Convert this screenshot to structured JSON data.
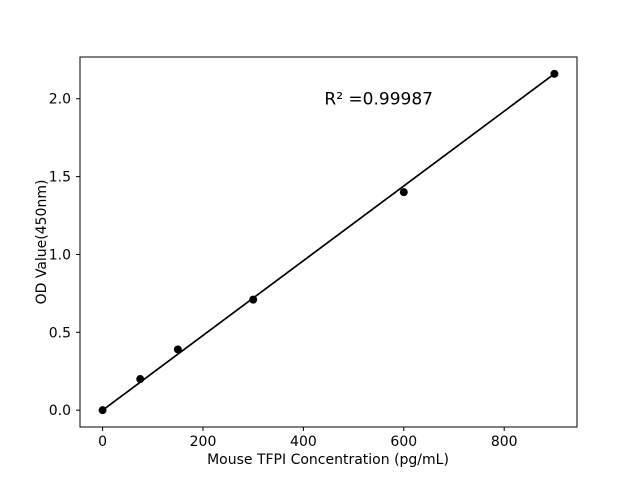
{
  "figure": {
    "background": "#ffffff"
  },
  "chart_data": {
    "type": "scatter",
    "title": "",
    "xlabel": "Mouse TFPI Concentration (pg/mL)",
    "ylabel": "OD Value(450nm)",
    "x": [
      0,
      75,
      150,
      300,
      600,
      900
    ],
    "y": [
      0.0,
      0.2,
      0.39,
      0.71,
      1.4,
      2.16
    ],
    "fit_line": {
      "x": [
        0,
        900
      ],
      "y": [
        0.0,
        2.16
      ]
    },
    "annotation": {
      "text": "R² =0.99987",
      "x": 550,
      "y": 2.0
    },
    "xticks": [
      {
        "v": 0,
        "label": "0"
      },
      {
        "v": 200,
        "label": "200"
      },
      {
        "v": 400,
        "label": "400"
      },
      {
        "v": 600,
        "label": "600"
      },
      {
        "v": 800,
        "label": "800"
      }
    ],
    "yticks": [
      {
        "v": 0,
        "label": "0.0"
      },
      {
        "v": 0.5,
        "label": "0.5"
      },
      {
        "v": 1,
        "label": "1.0"
      },
      {
        "v": 1.5,
        "label": "1.5"
      },
      {
        "v": 2,
        "label": "2.0"
      }
    ],
    "xlim": [
      -45,
      945
    ],
    "ylim": [
      -0.108,
      2.268
    ],
    "grid": false,
    "marker_color": "#000000",
    "line_color": "#000000",
    "axis_color": "#000000"
  }
}
